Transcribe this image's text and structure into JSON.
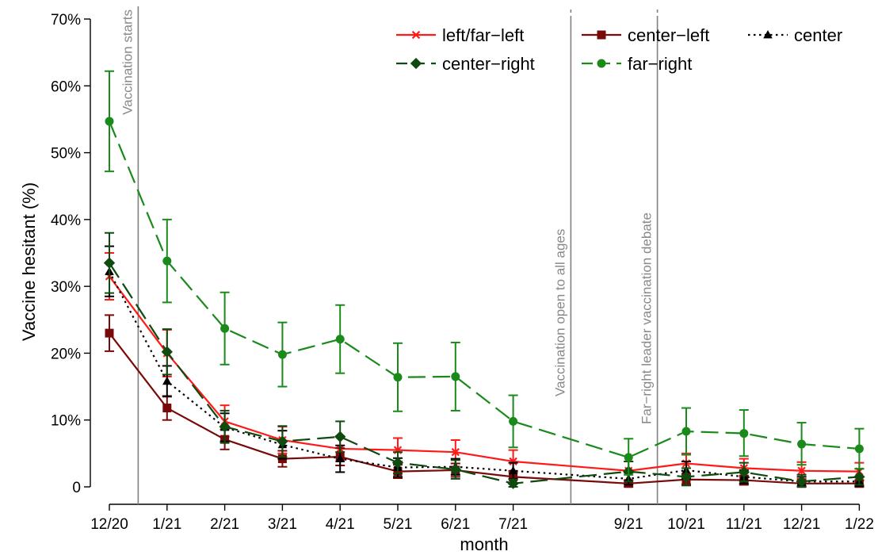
{
  "chart_data": {
    "type": "line",
    "xlabel": "month",
    "ylabel": "Vaccine hesitant (%)",
    "ylim": [
      0,
      70
    ],
    "yticks": [
      0,
      10,
      20,
      30,
      40,
      50,
      60,
      70
    ],
    "ytick_labels": [
      "0",
      "10%",
      "20%",
      "30%",
      "40%",
      "50%",
      "60%",
      "70%"
    ],
    "xlim": [
      0,
      13.6
    ],
    "xticks": [
      0,
      1,
      2,
      3,
      4,
      5,
      6,
      7,
      9,
      10,
      11,
      12,
      13
    ],
    "xtick_labels": [
      "12/20",
      "1/21",
      "2/21",
      "3/21",
      "4/21",
      "5/21",
      "6/21",
      "7/21",
      "9/21",
      "10/21",
      "11/21",
      "12/21",
      "1/22"
    ],
    "grid": false,
    "legend_position": "top-right",
    "events": [
      {
        "x": 0.5,
        "label": "Vaccination starts"
      },
      {
        "x": 8.0,
        "label": "Vaccination open to all ages"
      },
      {
        "x": 9.5,
        "label": "Far−right leader vaccination debate"
      }
    ],
    "series": [
      {
        "name": "left/far−left",
        "color": "#ff1a1a",
        "dash": "solid",
        "marker": "x",
        "x": [
          0,
          1,
          2,
          3,
          4,
          5,
          6,
          7,
          9,
          10,
          11,
          12,
          13
        ],
        "values": [
          31.5,
          20.0,
          9.8,
          7.0,
          5.7,
          5.5,
          5.2,
          3.8,
          2.4,
          3.5,
          2.8,
          2.4,
          2.3
        ],
        "lower": [
          28.0,
          16.5,
          7.5,
          5.0,
          3.8,
          3.8,
          3.5,
          2.2,
          1.0,
          2.0,
          1.5,
          1.2,
          1.0
        ],
        "upper": [
          35.0,
          23.5,
          12.2,
          9.0,
          7.6,
          7.3,
          7.0,
          5.5,
          3.8,
          5.0,
          4.2,
          3.7,
          3.6
        ]
      },
      {
        "name": "center−left",
        "color": "#7a0a0a",
        "dash": "solid",
        "marker": "square",
        "x": [
          0,
          1,
          2,
          3,
          4,
          5,
          6,
          7,
          9,
          10,
          11,
          12,
          13
        ],
        "values": [
          23.0,
          11.8,
          7.1,
          4.2,
          4.5,
          2.3,
          2.5,
          1.5,
          0.5,
          1.1,
          1.0,
          0.5,
          0.5
        ],
        "lower": [
          20.3,
          10.0,
          5.6,
          3.0,
          3.2,
          1.3,
          1.5,
          0.6,
          0.0,
          0.4,
          0.3,
          0.0,
          0.0
        ],
        "upper": [
          25.7,
          13.6,
          8.6,
          5.4,
          5.8,
          3.3,
          3.5,
          2.4,
          1.0,
          1.8,
          1.7,
          1.0,
          1.0
        ]
      },
      {
        "name": "center",
        "color": "#000000",
        "dash": "dot",
        "marker": "triangle",
        "x": [
          0,
          1,
          2,
          3,
          4,
          5,
          6,
          7,
          9,
          10,
          11,
          12,
          13
        ],
        "values": [
          32.2,
          15.8,
          8.9,
          6.3,
          4.2,
          2.9,
          3.0,
          2.4,
          1.2,
          2.5,
          1.5,
          0.8,
          0.8
        ],
        "lower": [
          28.5,
          13.5,
          6.8,
          4.2,
          2.2,
          1.5,
          1.8,
          1.2,
          0.3,
          1.2,
          0.5,
          0.1,
          0.1
        ],
        "upper": [
          36.0,
          18.1,
          11.0,
          8.4,
          6.2,
          4.3,
          4.2,
          3.6,
          2.1,
          3.8,
          2.5,
          1.5,
          1.5
        ]
      },
      {
        "name": "center−right",
        "color": "#0f4a0f",
        "dash": "longdash",
        "marker": "diamond",
        "x": [
          0,
          1,
          2,
          3,
          4,
          5,
          6,
          7,
          9,
          10,
          11,
          12,
          13
        ],
        "values": [
          33.5,
          20.2,
          9.0,
          6.8,
          7.5,
          3.6,
          2.6,
          0.5,
          2.3,
          1.5,
          2.2,
          0.8,
          1.5
        ],
        "lower": [
          29.0,
          16.8,
          6.6,
          4.5,
          5.2,
          2.0,
          1.2,
          0.0,
          0.8,
          0.2,
          0.8,
          0.0,
          0.3
        ],
        "upper": [
          38.0,
          23.6,
          11.4,
          9.1,
          9.8,
          5.2,
          4.0,
          1.1,
          3.8,
          2.8,
          3.6,
          1.8,
          2.7
        ]
      },
      {
        "name": "far−right",
        "color": "#1a8a1a",
        "dash": "longdash",
        "marker": "circle",
        "x": [
          0,
          1,
          2,
          3,
          4,
          5,
          6,
          7,
          9,
          10,
          11,
          12,
          13
        ],
        "values": [
          54.7,
          33.8,
          23.7,
          19.8,
          22.1,
          16.4,
          16.5,
          9.8,
          4.4,
          8.3,
          8.0,
          6.4,
          5.7
        ],
        "lower": [
          47.2,
          27.6,
          18.3,
          15.0,
          17.0,
          11.3,
          11.4,
          5.9,
          1.8,
          4.8,
          4.6,
          3.3,
          2.7
        ],
        "upper": [
          62.2,
          40.0,
          29.1,
          24.6,
          27.2,
          21.5,
          21.6,
          13.7,
          7.2,
          11.8,
          11.5,
          9.6,
          8.7
        ]
      }
    ],
    "legend_rows": [
      [
        "left/far−left",
        "center−left",
        "center"
      ],
      [
        "center−right",
        "far−right"
      ]
    ]
  }
}
